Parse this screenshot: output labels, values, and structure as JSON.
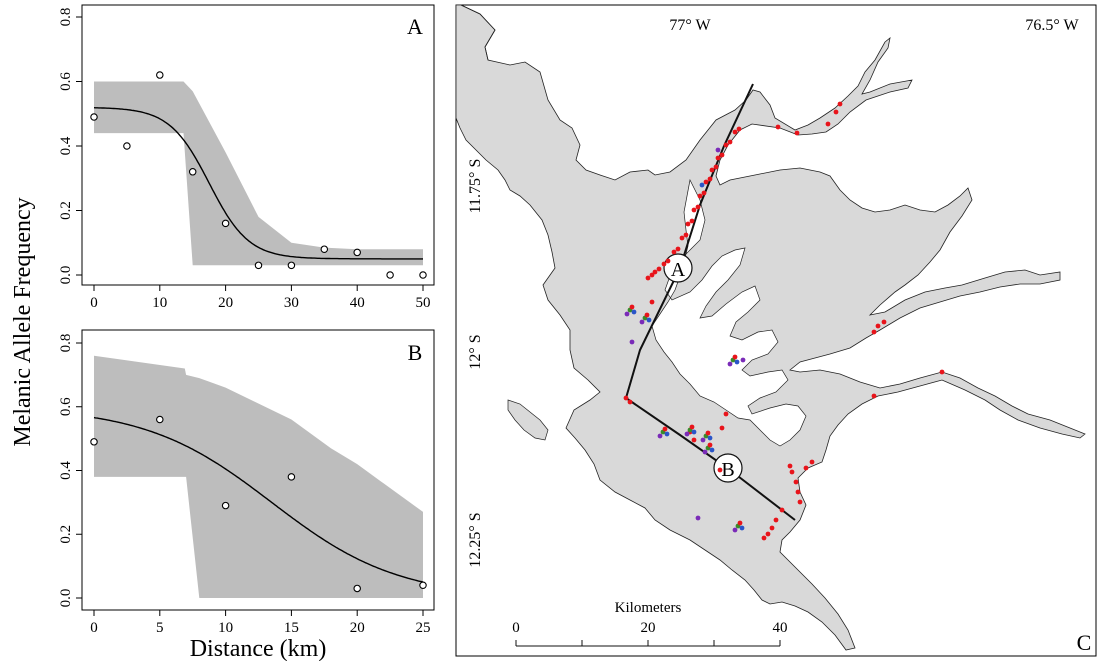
{
  "figure": {
    "shared_ylabel": "Melanic Allele Frequency",
    "shared_xlabel": "Distance (km)"
  },
  "chart_data": [
    {
      "type": "scatter",
      "panel": "A",
      "xlim": [
        0,
        50
      ],
      "ylim": [
        0,
        0.8
      ],
      "xticks": [
        0,
        10,
        20,
        30,
        40,
        50
      ],
      "yticks": [
        0.0,
        0.2,
        0.4,
        0.6,
        0.8
      ],
      "xticklabels": [
        "0",
        "10",
        "20",
        "30",
        "40",
        "50"
      ],
      "yticklabels": [
        "0.0",
        "0.2",
        "0.4",
        "0.6",
        "0.8"
      ],
      "points": {
        "x": [
          0,
          5,
          10,
          15,
          20,
          25,
          30,
          35,
          40,
          45,
          50
        ],
        "y": [
          0.49,
          0.4,
          0.62,
          0.32,
          0.16,
          0.03,
          0.03,
          0.08,
          0.07,
          0.0,
          0.0
        ]
      },
      "fit": {
        "model": "logistic cline",
        "top": 0.52,
        "bottom": 0.05,
        "center": 17.5,
        "width": 3.0
      },
      "band": {
        "x": [
          0,
          13.5,
          13.6,
          15,
          20,
          25,
          30,
          35,
          40,
          45,
          50
        ],
        "upper": [
          0.6,
          0.6,
          0.6,
          0.57,
          0.38,
          0.18,
          0.1,
          0.085,
          0.08,
          0.08,
          0.08
        ],
        "lower": [
          0.44,
          0.44,
          0.44,
          0.03,
          0.03,
          0.03,
          0.03,
          0.03,
          0.03,
          0.03,
          0.03
        ]
      },
      "grid": false
    },
    {
      "type": "scatter",
      "panel": "B",
      "xlim": [
        0,
        25
      ],
      "ylim": [
        0,
        0.8
      ],
      "xticks": [
        0,
        5,
        10,
        15,
        20,
        25
      ],
      "yticks": [
        0.0,
        0.2,
        0.4,
        0.6,
        0.8
      ],
      "xticklabels": [
        "0",
        "5",
        "10",
        "15",
        "20",
        "25"
      ],
      "yticklabels": [
        "0.0",
        "0.2",
        "0.4",
        "0.6",
        "0.8"
      ],
      "points": {
        "x": [
          0,
          5,
          10,
          15,
          20,
          25
        ],
        "y": [
          0.49,
          0.56,
          0.29,
          0.38,
          0.03,
          0.04
        ]
      },
      "fit": {
        "model": "logistic cline",
        "top": 0.6,
        "bottom": 0.0,
        "center": 13.5,
        "width": 4.8
      },
      "band": {
        "x": [
          0,
          6.9,
          7.0,
          8.0,
          10,
          12,
          15,
          18,
          20,
          22,
          25
        ],
        "upper": [
          0.76,
          0.72,
          0.7,
          0.69,
          0.66,
          0.62,
          0.56,
          0.47,
          0.42,
          0.36,
          0.27
        ],
        "lower": [
          0.38,
          0.38,
          0.38,
          0.0,
          0.0,
          0.0,
          0.0,
          0.0,
          0.0,
          0.0,
          0.0
        ]
      },
      "grid": false
    }
  ],
  "map": {
    "panel_label": "C",
    "lon_labels": [
      "77° W",
      "76.5° W"
    ],
    "lat_labels": [
      "11.75° S",
      "12° S",
      "12.25° S"
    ],
    "transect_labels": [
      "A",
      "B"
    ],
    "scalebar": {
      "title": "Kilometers",
      "ticks": [
        "0",
        "20",
        "40"
      ]
    },
    "colors": {
      "land": "#d9d9d9",
      "outline": "#222222",
      "red_sites": "#e8141b",
      "purple_sites": "#7a2bb8",
      "blue_sites": "#2a55c8",
      "green_sites": "#3a8a2a"
    }
  }
}
